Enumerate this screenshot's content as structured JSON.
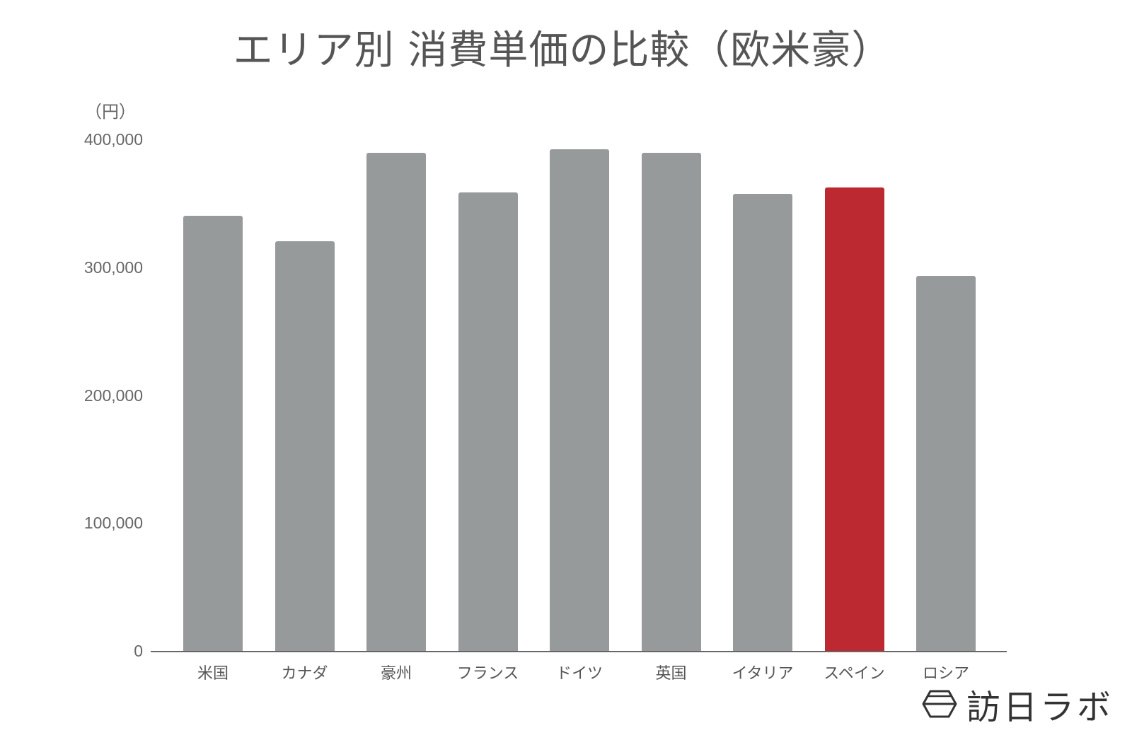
{
  "header": {
    "title": "エリア別 消費単価の比較（欧米豪）"
  },
  "yaxis": {
    "unit": "（円）",
    "ticks": [
      {
        "label": "400,000",
        "value": 400000
      },
      {
        "label": "300,000",
        "value": 300000
      },
      {
        "label": "200,000",
        "value": 200000
      },
      {
        "label": "100,000",
        "value": 100000
      },
      {
        "label": "0",
        "value": 0
      }
    ]
  },
  "colors": {
    "default_bar": "#979a9a",
    "highlight_bar": "#bd2930",
    "axis": "#666666",
    "text": "#555555"
  },
  "logo": {
    "icon": "hexagon-bowl-icon",
    "text": "訪日ラボ"
  },
  "chart_data": {
    "type": "bar",
    "title": "エリア別 消費単価の比較（欧米豪）",
    "xlabel": "",
    "ylabel": "（円）",
    "ylim": [
      0,
      400000
    ],
    "grid": false,
    "legend": "none",
    "categories": [
      "米国",
      "カナダ",
      "豪州",
      "フランス",
      "ドイツ",
      "英国",
      "イタリア",
      "スペイン",
      "ロシア"
    ],
    "values": [
      341000,
      321000,
      390000,
      359000,
      393000,
      390000,
      358000,
      363000,
      294000
    ],
    "highlighted": [
      "スペイン"
    ]
  }
}
